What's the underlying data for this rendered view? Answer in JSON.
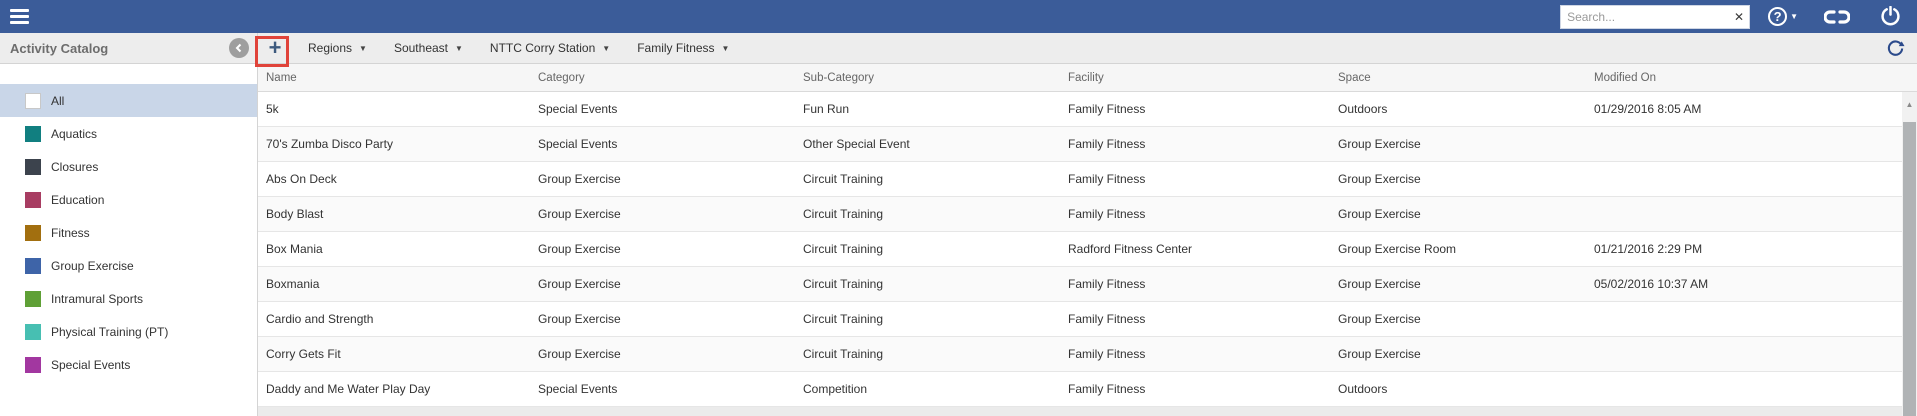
{
  "topbar": {
    "search_placeholder": "Search...",
    "search_clear_glyph": "✕",
    "help_glyph": "?",
    "colors": {
      "bar_bg": "#3B5C99"
    }
  },
  "sidebar": {
    "title": "Activity Catalog",
    "items": [
      {
        "label": "All",
        "color": "#FFFFFF",
        "border": "#C8C8C8",
        "selected": true
      },
      {
        "label": "Aquatics",
        "color": "#117F80"
      },
      {
        "label": "Closures",
        "color": "#3C434D"
      },
      {
        "label": "Education",
        "color": "#A83D62"
      },
      {
        "label": "Fitness",
        "color": "#A26F0F"
      },
      {
        "label": "Group Exercise",
        "color": "#3E64A8"
      },
      {
        "label": "Intramural Sports",
        "color": "#5FA036"
      },
      {
        "label": "Physical Training (PT)",
        "color": "#47BFB2"
      },
      {
        "label": "Special Events",
        "color": "#A237A0"
      }
    ]
  },
  "toolbar": {
    "add_button_label": "+",
    "dropdowns": [
      {
        "label": "Regions"
      },
      {
        "label": "Southeast"
      },
      {
        "label": "NTTC Corry Station"
      },
      {
        "label": "Family Fitness"
      }
    ],
    "highlight_color": "#E0433A",
    "accent_color": "#3D5A7E"
  },
  "table": {
    "columns": [
      "Name",
      "Category",
      "Sub-Category",
      "Facility",
      "Space",
      "Modified On"
    ],
    "rows": [
      [
        "5k",
        "Special Events",
        "Fun Run",
        "Family Fitness",
        "Outdoors",
        "01/29/2016 8:05 AM"
      ],
      [
        "70's Zumba Disco Party",
        "Special Events",
        "Other Special Event",
        "Family Fitness",
        "Group Exercise",
        ""
      ],
      [
        "Abs On Deck",
        "Group Exercise",
        "Circuit Training",
        "Family Fitness",
        "Group Exercise",
        ""
      ],
      [
        "Body Blast",
        "Group Exercise",
        "Circuit Training",
        "Family Fitness",
        "Group Exercise",
        ""
      ],
      [
        "Box Mania",
        "Group Exercise",
        "Circuit Training",
        "Radford Fitness Center",
        "Group Exercise Room",
        "01/21/2016 2:29 PM"
      ],
      [
        "Boxmania",
        "Group Exercise",
        "Circuit Training",
        "Family Fitness",
        "Group Exercise",
        "05/02/2016 10:37 AM"
      ],
      [
        "Cardio and Strength",
        "Group Exercise",
        "Circuit Training",
        "Family Fitness",
        "Group Exercise",
        ""
      ],
      [
        "Corry Gets Fit",
        "Group Exercise",
        "Circuit Training",
        "Family Fitness",
        "Group Exercise",
        ""
      ],
      [
        "Daddy and Me Water Play Day",
        "Special Events",
        "Competition",
        "Family Fitness",
        "Outdoors",
        ""
      ]
    ]
  }
}
